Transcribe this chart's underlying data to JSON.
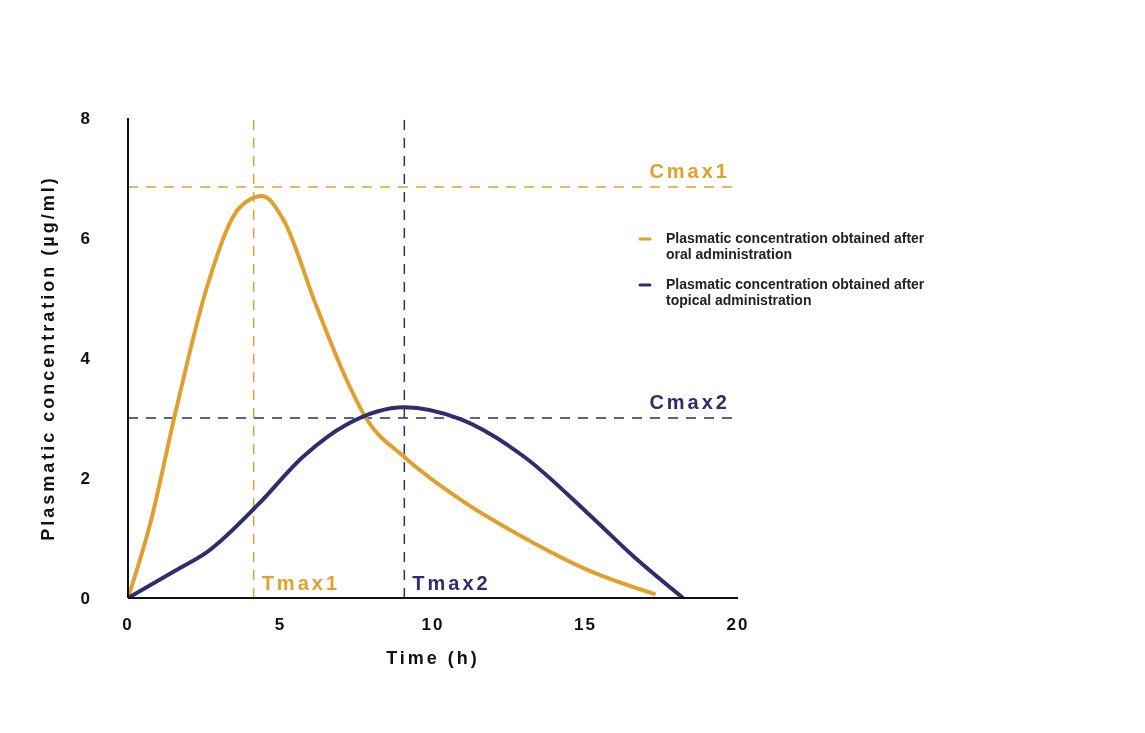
{
  "chart_data": {
    "type": "line",
    "xlabel": "Time (h)",
    "ylabel": "Plasmatic concentration (µg/ml)",
    "xlim": [
      0,
      20
    ],
    "xticks": [
      0,
      5,
      10,
      15,
      20
    ],
    "ylim": [
      0,
      8
    ],
    "yticks": [
      0,
      2,
      4,
      6,
      8
    ],
    "grid": false,
    "legend": "top right",
    "marker": "none",
    "line_style": "solid",
    "series": [
      {
        "name": "Plasmatic concentration obtained after oral administration",
        "color": "#e0a030",
        "x": [
          0,
          0.73,
          1.56,
          2.6,
          3.65,
          4.4,
          5.1,
          6.15,
          7.2,
          7.8,
          9.06,
          10.9,
          13.0,
          15.1,
          17.3
        ],
        "values": [
          0,
          1.24,
          3.1,
          5.2,
          6.5,
          6.7,
          6.3,
          4.9,
          3.6,
          3.0,
          2.35,
          1.64,
          1.0,
          0.46,
          0.06
        ]
      },
      {
        "name": "Plasmatic concentration obtained after topical administration",
        "color": "#2e2e6e",
        "x": [
          0,
          1.56,
          2.6,
          4.27,
          5.73,
          7.2,
          9.06,
          10.9,
          13.0,
          15.1,
          16.56,
          18.2
        ],
        "values": [
          0,
          0.46,
          0.77,
          1.56,
          2.35,
          2.9,
          3.18,
          2.98,
          2.35,
          1.4,
          0.7,
          0
        ]
      }
    ],
    "ref_lines": [
      {
        "axis": "y",
        "value": 6.85,
        "label": "Cmax1",
        "color": "#e0a030",
        "line_style": "dashed"
      },
      {
        "axis": "x",
        "value": 4.12,
        "label": "Tmax1",
        "color": "#e0a030",
        "line_style": "dashed"
      },
      {
        "axis": "y",
        "value": 3.0,
        "label": "Cmax2",
        "color": "#2e2e6e",
        "line_style": "dashed"
      },
      {
        "axis": "x",
        "value": 9.06,
        "label": "Tmax2",
        "color": "#2e2e6e",
        "line_style": "dashed"
      }
    ]
  }
}
